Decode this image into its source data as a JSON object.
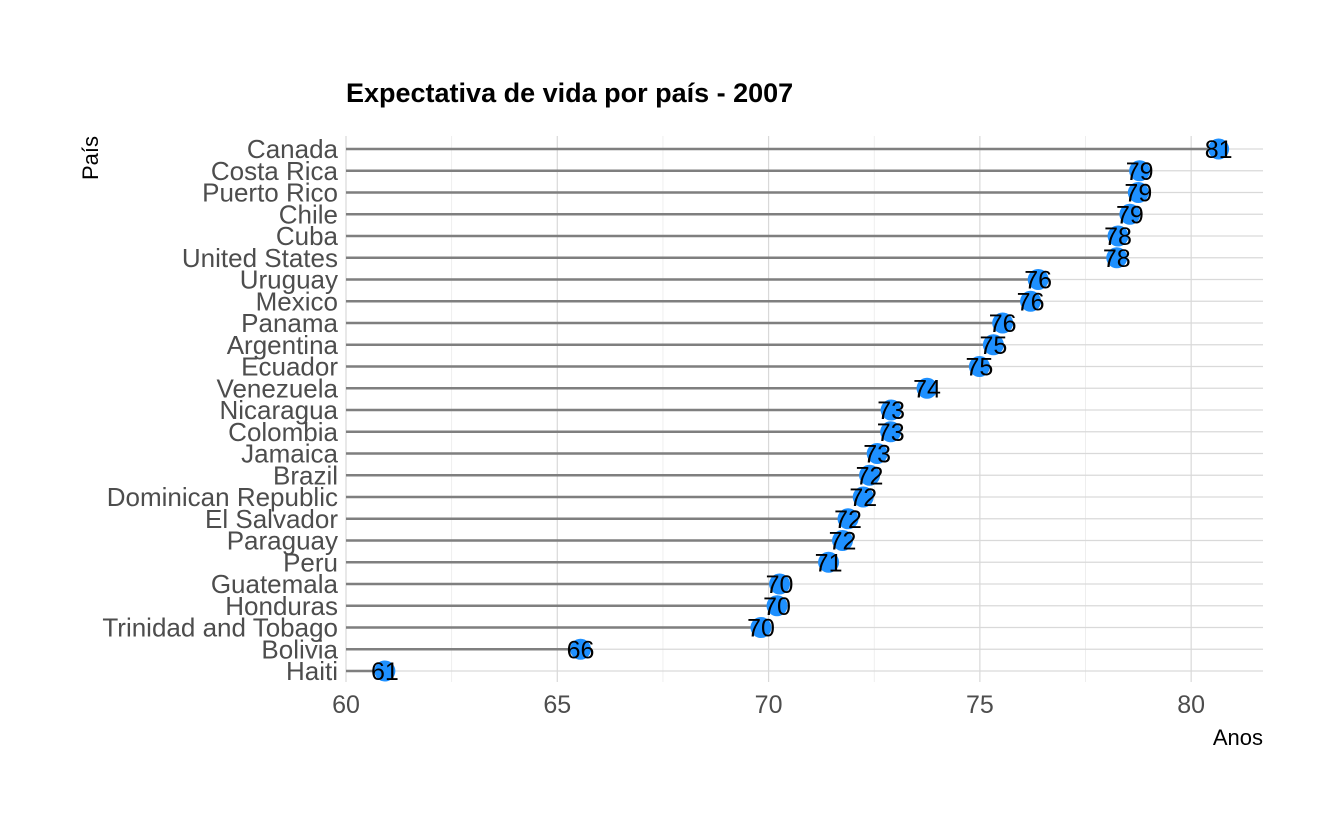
{
  "chart_data": {
    "type": "lollipop",
    "title": "Expectativa de vida por país - 2007",
    "xlabel": "Anos",
    "ylabel": "País",
    "xlim": [
      60,
      81.7
    ],
    "xticks": [
      60,
      65,
      70,
      75,
      80
    ],
    "grid": true,
    "point_color": "#1E90FF",
    "stem_color": "#7F7F7F",
    "categories": [
      "Canada",
      "Costa Rica",
      "Puerto Rico",
      "Chile",
      "Cuba",
      "United States",
      "Uruguay",
      "Mexico",
      "Panama",
      "Argentina",
      "Ecuador",
      "Venezuela",
      "Nicaragua",
      "Colombia",
      "Jamaica",
      "Brazil",
      "Dominican Republic",
      "El Salvador",
      "Paraguay",
      "Peru",
      "Guatemala",
      "Honduras",
      "Trinidad and Tobago",
      "Bolivia",
      "Haiti"
    ],
    "values": [
      80.65,
      78.78,
      78.75,
      78.55,
      78.27,
      78.24,
      76.38,
      76.2,
      75.54,
      75.32,
      74.99,
      73.75,
      72.9,
      72.89,
      72.57,
      72.39,
      72.24,
      71.88,
      71.75,
      71.42,
      70.26,
      70.2,
      69.82,
      65.55,
      60.92
    ],
    "labels": [
      "81",
      "79",
      "79",
      "79",
      "78",
      "78",
      "76",
      "76",
      "76",
      "75",
      "75",
      "74",
      "73",
      "73",
      "73",
      "72",
      "72",
      "72",
      "72",
      "71",
      "70",
      "70",
      "70",
      "66",
      "61"
    ]
  }
}
